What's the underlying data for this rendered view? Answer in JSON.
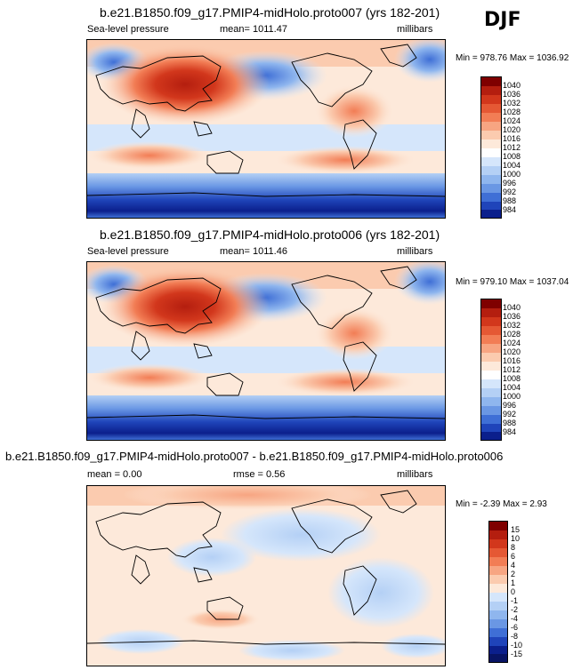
{
  "season": "DJF",
  "panels": [
    {
      "title": "b.e21.B1850.f09_g17.PMIP4-midHolo.proto007 (yrs 182-201)",
      "left_label": "Sea-level pressure",
      "center_label": "mean= 1011.47",
      "units": "millibars",
      "minmax": "Min = 978.76 Max = 1036.92",
      "colorbar_labels": [
        "1040",
        "1036",
        "1032",
        "1028",
        "1024",
        "1020",
        "1016",
        "1012",
        "1008",
        "1004",
        "1000",
        "996",
        "992",
        "988",
        "984"
      ]
    },
    {
      "title": "b.e21.B1850.f09_g17.PMIP4-midHolo.proto006 (yrs 182-201)",
      "left_label": "Sea-level pressure",
      "center_label": "mean= 1011.46",
      "units": "millibars",
      "minmax": "Min = 979.10 Max = 1037.04",
      "colorbar_labels": [
        "1040",
        "1036",
        "1032",
        "1028",
        "1024",
        "1020",
        "1016",
        "1012",
        "1008",
        "1004",
        "1000",
        "996",
        "992",
        "988",
        "984"
      ]
    },
    {
      "title": "b.e21.B1850.f09_g17.PMIP4-midHolo.proto007 - b.e21.B1850.f09_g17.PMIP4-midHolo.proto006",
      "left_label": "mean =   0.00",
      "center_label": "rmse =   0.56",
      "units": "millibars",
      "minmax": "Min =  -2.39 Max =   2.93",
      "colorbar_labels": [
        "15",
        "10",
        "8",
        "6",
        "4",
        "2",
        "1",
        "0",
        "-1",
        "-2",
        "-4",
        "-6",
        "-8",
        "-10",
        "-15"
      ]
    }
  ],
  "colors": {
    "abs_palette": [
      "#7f0000",
      "#b41e0f",
      "#d2371c",
      "#e55834",
      "#f27d55",
      "#f7a582",
      "#fbcbaf",
      "#fde9da",
      "#ffffff",
      "#d5e6fb",
      "#b4d0f5",
      "#8fb6ee",
      "#6a97e4",
      "#3f6fd6",
      "#1f44ba",
      "#0b1f8c"
    ],
    "diff_palette": [
      "#7f0000",
      "#b41e0f",
      "#d2371c",
      "#e55834",
      "#f27d55",
      "#f7a582",
      "#fbcbaf",
      "#fde9da",
      "#d5e6fb",
      "#b4d0f5",
      "#8fb6ee",
      "#6a97e4",
      "#3f6fd6",
      "#1f44ba",
      "#0b1f8c",
      "#081464"
    ]
  }
}
